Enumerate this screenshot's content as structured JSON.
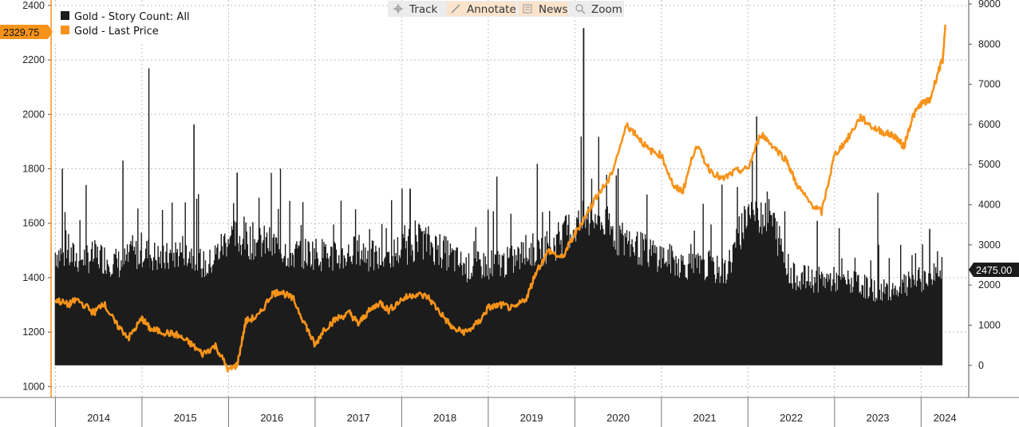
{
  "toolbar": {
    "items": [
      {
        "label": "Track",
        "icon": "crosshair-icon"
      },
      {
        "label": "Annotate",
        "icon": "pencil-icon"
      },
      {
        "label": "News",
        "icon": "news-icon"
      },
      {
        "label": "Zoom",
        "icon": "magnifier-icon"
      }
    ]
  },
  "colors": {
    "price": "#f7931a",
    "count": "#1c1c1c",
    "grid": "#bdbdbd",
    "toolbar_bg": "#ececec",
    "orange_pill": "#fbe3cc",
    "badge_left_bg": "#f7931a",
    "badge_right_bg": "#1c1c1c"
  },
  "chart_data": {
    "type": "bar+line",
    "title": "",
    "xlabel": "",
    "x_categories": [
      "2014",
      "2015",
      "2016",
      "2017",
      "2018",
      "2019",
      "2020",
      "2021",
      "2022",
      "2023",
      "2024"
    ],
    "x_range": [
      2013.95,
      2024.55
    ],
    "left_axis": {
      "label": "Gold - Last Price",
      "range": [
        960,
        2420
      ],
      "ticks": [
        1000,
        1200,
        1400,
        1600,
        1800,
        2000,
        2200,
        2400
      ],
      "last_value_label": "2329.75"
    },
    "right_axis": {
      "label": "Gold - Story Count: All",
      "range": [
        -800,
        9100
      ],
      "ticks": [
        0,
        1000,
        2000,
        3000,
        4000,
        5000,
        6000,
        7000,
        8000,
        9000
      ],
      "last_value_label": "2475.00"
    },
    "series": [
      {
        "name": "Gold - Story Count: All",
        "kind": "bar",
        "axis": "right",
        "color": "#1c1c1c",
        "points": [
          [
            2014.0,
            2900
          ],
          [
            2014.25,
            2750
          ],
          [
            2014.5,
            2800
          ],
          [
            2014.75,
            2600
          ],
          [
            2015.0,
            2950
          ],
          [
            2015.25,
            2700
          ],
          [
            2015.5,
            3000
          ],
          [
            2015.75,
            2500
          ],
          [
            2016.0,
            3300
          ],
          [
            2016.25,
            3200
          ],
          [
            2016.5,
            3100
          ],
          [
            2016.75,
            2850
          ],
          [
            2017.0,
            2900
          ],
          [
            2017.25,
            2750
          ],
          [
            2017.5,
            2950
          ],
          [
            2017.75,
            2700
          ],
          [
            2018.0,
            3000
          ],
          [
            2018.25,
            3200
          ],
          [
            2018.5,
            2900
          ],
          [
            2018.75,
            2500
          ],
          [
            2019.0,
            2600
          ],
          [
            2019.25,
            2650
          ],
          [
            2019.5,
            2950
          ],
          [
            2019.75,
            3100
          ],
          [
            2020.0,
            3600
          ],
          [
            2020.25,
            3800
          ],
          [
            2020.5,
            3300
          ],
          [
            2020.75,
            3000
          ],
          [
            2021.0,
            2800
          ],
          [
            2021.25,
            2600
          ],
          [
            2021.5,
            2500
          ],
          [
            2021.75,
            2400
          ],
          [
            2022.0,
            4000
          ],
          [
            2022.25,
            3900
          ],
          [
            2022.5,
            2300
          ],
          [
            2022.75,
            2200
          ],
          [
            2023.0,
            2200
          ],
          [
            2023.25,
            2100
          ],
          [
            2023.5,
            1900
          ],
          [
            2023.75,
            2000
          ],
          [
            2024.0,
            2200
          ],
          [
            2024.25,
            2475
          ]
        ],
        "spikes": [
          [
            2014.08,
            4900
          ],
          [
            2014.78,
            5100
          ],
          [
            2015.08,
            7400
          ],
          [
            2015.6,
            6000
          ],
          [
            2016.1,
            4800
          ],
          [
            2016.6,
            4900
          ],
          [
            2017.3,
            4100
          ],
          [
            2018.1,
            4400
          ],
          [
            2019.1,
            4700
          ],
          [
            2020.1,
            8400
          ],
          [
            2020.5,
            4900
          ],
          [
            2021.7,
            4500
          ],
          [
            2022.1,
            6200
          ],
          [
            2022.8,
            3600
          ],
          [
            2023.5,
            4300
          ],
          [
            2024.1,
            3400
          ]
        ]
      },
      {
        "name": "Gold - Last Price",
        "kind": "line",
        "axis": "left",
        "color": "#f7931a",
        "points": [
          [
            2014.0,
            1320
          ],
          [
            2014.15,
            1300
          ],
          [
            2014.25,
            1320
          ],
          [
            2014.45,
            1270
          ],
          [
            2014.55,
            1310
          ],
          [
            2014.7,
            1230
          ],
          [
            2014.85,
            1180
          ],
          [
            2015.0,
            1250
          ],
          [
            2015.1,
            1210
          ],
          [
            2015.25,
            1200
          ],
          [
            2015.4,
            1190
          ],
          [
            2015.55,
            1160
          ],
          [
            2015.7,
            1120
          ],
          [
            2015.85,
            1150
          ],
          [
            2016.0,
            1060
          ],
          [
            2016.1,
            1080
          ],
          [
            2016.2,
            1240
          ],
          [
            2016.35,
            1260
          ],
          [
            2016.5,
            1340
          ],
          [
            2016.6,
            1350
          ],
          [
            2016.75,
            1320
          ],
          [
            2016.9,
            1220
          ],
          [
            2017.0,
            1150
          ],
          [
            2017.1,
            1210
          ],
          [
            2017.25,
            1250
          ],
          [
            2017.4,
            1270
          ],
          [
            2017.5,
            1230
          ],
          [
            2017.6,
            1270
          ],
          [
            2017.75,
            1310
          ],
          [
            2017.85,
            1280
          ],
          [
            2018.0,
            1320
          ],
          [
            2018.15,
            1340
          ],
          [
            2018.3,
            1330
          ],
          [
            2018.45,
            1270
          ],
          [
            2018.6,
            1210
          ],
          [
            2018.75,
            1200
          ],
          [
            2018.9,
            1240
          ],
          [
            2019.0,
            1290
          ],
          [
            2019.15,
            1300
          ],
          [
            2019.3,
            1285
          ],
          [
            2019.45,
            1330
          ],
          [
            2019.55,
            1420
          ],
          [
            2019.7,
            1500
          ],
          [
            2019.85,
            1470
          ],
          [
            2020.0,
            1560
          ],
          [
            2020.15,
            1640
          ],
          [
            2020.25,
            1700
          ],
          [
            2020.4,
            1760
          ],
          [
            2020.6,
            1960
          ],
          [
            2020.7,
            1930
          ],
          [
            2020.85,
            1870
          ],
          [
            2021.0,
            1850
          ],
          [
            2021.15,
            1730
          ],
          [
            2021.25,
            1720
          ],
          [
            2021.4,
            1890
          ],
          [
            2021.55,
            1800
          ],
          [
            2021.7,
            1760
          ],
          [
            2021.85,
            1790
          ],
          [
            2022.0,
            1800
          ],
          [
            2022.15,
            1930
          ],
          [
            2022.3,
            1880
          ],
          [
            2022.45,
            1830
          ],
          [
            2022.55,
            1750
          ],
          [
            2022.7,
            1680
          ],
          [
            2022.85,
            1640
          ],
          [
            2023.0,
            1850
          ],
          [
            2023.15,
            1910
          ],
          [
            2023.3,
            1990
          ],
          [
            2023.45,
            1950
          ],
          [
            2023.6,
            1930
          ],
          [
            2023.7,
            1920
          ],
          [
            2023.8,
            1880
          ],
          [
            2023.9,
            1990
          ],
          [
            2024.0,
            2040
          ],
          [
            2024.1,
            2050
          ],
          [
            2024.2,
            2160
          ],
          [
            2024.25,
            2200
          ],
          [
            2024.28,
            2329.75
          ]
        ]
      }
    ],
    "legend": [
      "Gold - Story Count: All",
      "Gold - Last Price"
    ],
    "legend_position": "top-left",
    "grid": true
  }
}
